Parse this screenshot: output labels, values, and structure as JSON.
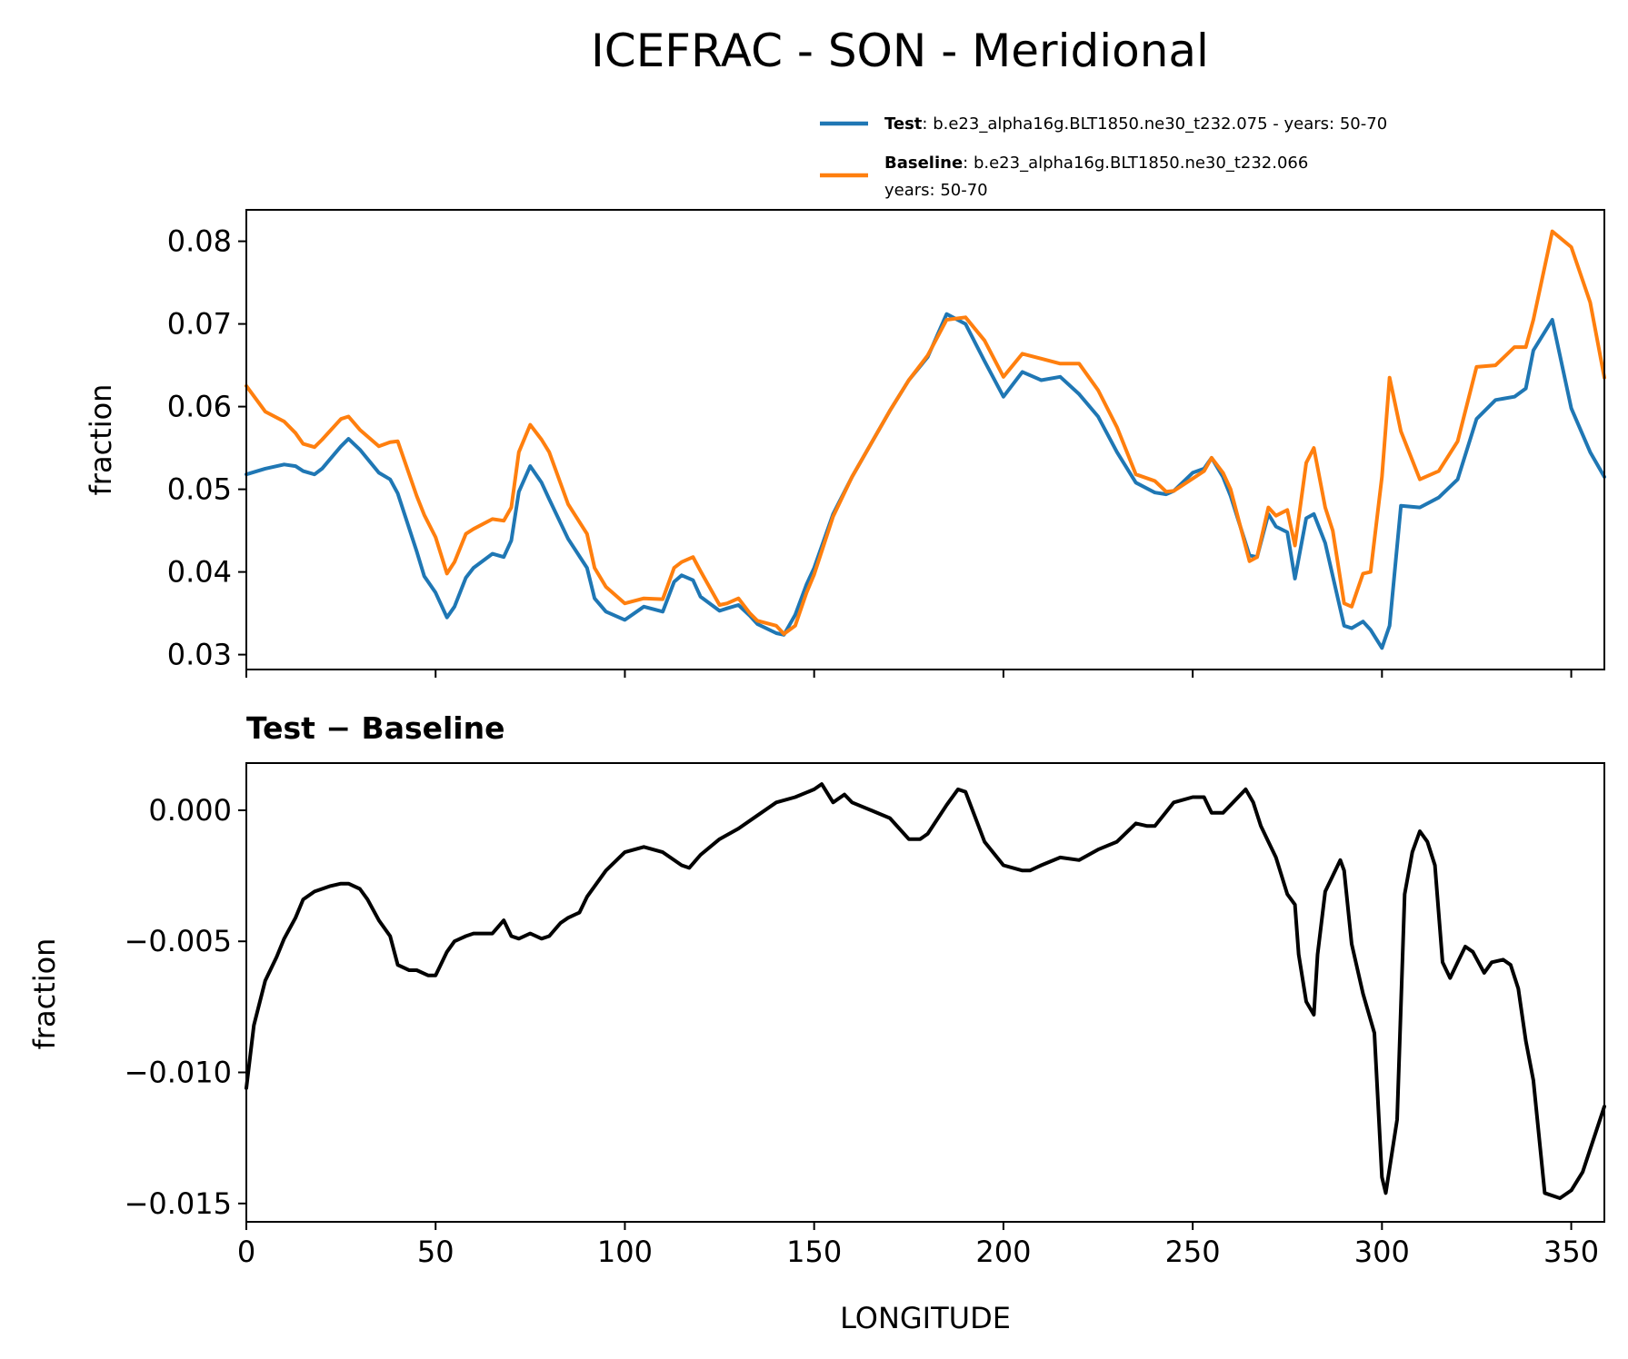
{
  "chart_data": [
    {
      "type": "line",
      "title": "ICEFRAC - SON - Meridional",
      "xlabel": "",
      "ylabel": "fraction",
      "xlim": [
        0,
        358.75
      ],
      "ylim": [
        0.0282,
        0.0838
      ],
      "yticks": [
        0.03,
        0.04,
        0.05,
        0.06,
        0.07,
        0.08
      ],
      "ytick_labels": [
        "0.03",
        "0.04",
        "0.05",
        "0.06",
        "0.07",
        "0.08"
      ],
      "legend": {
        "placement": "above-right",
        "entries": [
          {
            "bold": "Test",
            "text": ": b.e23_alpha16g.BLT1850.ne30_t232.075 - years: 50-70",
            "text2": ""
          },
          {
            "bold": "Baseline",
            "text": ": b.e23_alpha16g.BLT1850.ne30_t232.066",
            "text2": "years: 50-70"
          }
        ]
      },
      "series": [
        {
          "name": "Test",
          "color": "#1f77b4",
          "x": [
            0,
            5,
            10,
            13,
            15,
            18,
            20,
            25,
            27,
            30,
            35,
            38,
            40,
            45,
            47,
            50,
            53,
            55,
            58,
            60,
            65,
            68,
            70,
            72,
            75,
            78,
            80,
            85,
            90,
            92,
            95,
            100,
            105,
            110,
            113,
            115,
            118,
            120,
            125,
            127,
            130,
            133,
            135,
            140,
            142,
            145,
            148,
            150,
            155,
            160,
            165,
            170,
            175,
            180,
            185,
            190,
            195,
            200,
            205,
            210,
            215,
            220,
            225,
            230,
            235,
            240,
            243,
            245,
            250,
            253,
            255,
            258,
            260,
            265,
            267,
            270,
            272,
            275,
            277,
            280,
            282,
            285,
            287,
            290,
            292,
            295,
            297,
            300,
            302,
            305,
            310,
            315,
            320,
            325,
            330,
            335,
            338,
            340,
            345,
            350,
            355,
            358.75
          ],
          "values": [
            0.0518,
            0.0525,
            0.053,
            0.0528,
            0.0522,
            0.0518,
            0.0525,
            0.0552,
            0.0561,
            0.0548,
            0.052,
            0.0512,
            0.0495,
            0.0425,
            0.0395,
            0.0375,
            0.0345,
            0.0358,
            0.0393,
            0.0405,
            0.0422,
            0.0418,
            0.0438,
            0.0497,
            0.0528,
            0.0508,
            0.0488,
            0.044,
            0.0405,
            0.0368,
            0.0352,
            0.0342,
            0.0358,
            0.0352,
            0.0388,
            0.0396,
            0.039,
            0.037,
            0.0353,
            0.0356,
            0.036,
            0.0347,
            0.0337,
            0.0326,
            0.0324,
            0.0348,
            0.0385,
            0.0405,
            0.047,
            0.0515,
            0.0555,
            0.0595,
            0.0632,
            0.066,
            0.0712,
            0.07,
            0.0655,
            0.0612,
            0.0642,
            0.0632,
            0.0636,
            0.0615,
            0.0588,
            0.0545,
            0.0508,
            0.0496,
            0.0494,
            0.0498,
            0.052,
            0.0525,
            0.0538,
            0.0515,
            0.0492,
            0.042,
            0.0418,
            0.047,
            0.0455,
            0.0448,
            0.0392,
            0.0465,
            0.047,
            0.0435,
            0.0395,
            0.0335,
            0.0332,
            0.034,
            0.033,
            0.0308,
            0.0335,
            0.048,
            0.0478,
            0.049,
            0.0512,
            0.0585,
            0.0608,
            0.0612,
            0.0622,
            0.0668,
            0.0705,
            0.0598,
            0.0545,
            0.0515
          ]
        },
        {
          "name": "Baseline",
          "color": "#ff7f0e",
          "x": [
            0,
            5,
            10,
            13,
            15,
            18,
            20,
            25,
            27,
            30,
            35,
            38,
            40,
            45,
            47,
            50,
            53,
            55,
            58,
            60,
            65,
            68,
            70,
            72,
            75,
            78,
            80,
            85,
            90,
            92,
            95,
            100,
            105,
            110,
            113,
            115,
            118,
            120,
            125,
            127,
            130,
            133,
            135,
            140,
            142,
            145,
            148,
            150,
            155,
            160,
            165,
            170,
            175,
            180,
            185,
            190,
            195,
            200,
            205,
            210,
            215,
            220,
            225,
            230,
            235,
            240,
            243,
            245,
            250,
            253,
            255,
            258,
            260,
            265,
            267,
            270,
            272,
            275,
            277,
            280,
            282,
            285,
            287,
            290,
            292,
            295,
            297,
            300,
            302,
            305,
            310,
            315,
            320,
            325,
            330,
            335,
            338,
            340,
            345,
            350,
            355,
            358.75
          ],
          "values": [
            0.0625,
            0.0594,
            0.0582,
            0.0568,
            0.0555,
            0.0551,
            0.056,
            0.0585,
            0.0588,
            0.0572,
            0.0552,
            0.0557,
            0.0558,
            0.0492,
            0.0469,
            0.0442,
            0.0398,
            0.0412,
            0.0446,
            0.0452,
            0.0464,
            0.0462,
            0.0478,
            0.0545,
            0.0578,
            0.056,
            0.0545,
            0.0482,
            0.0446,
            0.0405,
            0.0382,
            0.0362,
            0.0368,
            0.0367,
            0.0405,
            0.0412,
            0.0418,
            0.0401,
            0.036,
            0.0362,
            0.0368,
            0.035,
            0.0341,
            0.0335,
            0.0325,
            0.0335,
            0.0375,
            0.0397,
            0.0467,
            0.0515,
            0.0555,
            0.0595,
            0.0632,
            0.0662,
            0.0705,
            0.0708,
            0.068,
            0.0636,
            0.0664,
            0.0658,
            0.0652,
            0.0652,
            0.062,
            0.0575,
            0.0518,
            0.051,
            0.0497,
            0.0498,
            0.0513,
            0.0522,
            0.0538,
            0.052,
            0.05,
            0.0413,
            0.0418,
            0.0478,
            0.0468,
            0.0475,
            0.0432,
            0.0532,
            0.055,
            0.0478,
            0.045,
            0.0362,
            0.0358,
            0.0398,
            0.04,
            0.0515,
            0.0635,
            0.057,
            0.0512,
            0.0522,
            0.0558,
            0.0648,
            0.065,
            0.0672,
            0.0672,
            0.0705,
            0.0812,
            0.0793,
            0.0726,
            0.0635
          ]
        }
      ]
    },
    {
      "type": "line",
      "title": "Test − Baseline",
      "xlabel": "LONGITUDE",
      "ylabel": "fraction",
      "xlim": [
        0,
        358.75
      ],
      "ylim": [
        -0.0157,
        0.0018
      ],
      "xticks": [
        0,
        50,
        100,
        150,
        200,
        250,
        300,
        350
      ],
      "xtick_labels": [
        "0",
        "50",
        "100",
        "150",
        "200",
        "250",
        "300",
        "350"
      ],
      "yticks": [
        0.0,
        -0.005,
        -0.01,
        -0.015
      ],
      "ytick_labels": [
        "0.000",
        "−0.005",
        "−0.010",
        "−0.015"
      ],
      "series": [
        {
          "name": "Test − Baseline",
          "color": "#000000",
          "x": [
            0,
            2,
            5,
            8,
            10,
            13,
            15,
            18,
            20,
            22,
            25,
            27,
            30,
            32,
            35,
            38,
            40,
            43,
            45,
            48,
            50,
            53,
            55,
            58,
            60,
            65,
            68,
            70,
            72,
            75,
            78,
            80,
            83,
            85,
            88,
            90,
            95,
            100,
            105,
            110,
            115,
            117,
            120,
            125,
            130,
            135,
            140,
            145,
            150,
            152,
            155,
            158,
            160,
            165,
            170,
            175,
            178,
            180,
            185,
            188,
            190,
            195,
            200,
            205,
            207,
            210,
            215,
            220,
            225,
            230,
            235,
            238,
            240,
            245,
            250,
            253,
            255,
            258,
            260,
            264,
            266,
            268,
            270,
            272,
            275,
            277,
            278,
            280,
            282,
            283,
            285,
            287,
            289,
            290,
            292,
            295,
            298,
            300,
            301,
            304,
            306,
            308,
            310,
            312,
            314,
            316,
            318,
            320,
            322,
            324,
            327,
            329,
            332,
            334,
            336,
            338,
            340,
            343,
            347,
            350,
            353,
            356,
            358.75
          ],
          "values": [
            -0.0106,
            -0.0082,
            -0.0065,
            -0.0056,
            -0.0049,
            -0.0041,
            -0.0034,
            -0.0031,
            -0.003,
            -0.0029,
            -0.0028,
            -0.0028,
            -0.003,
            -0.0034,
            -0.0042,
            -0.0048,
            -0.0059,
            -0.0061,
            -0.0061,
            -0.0063,
            -0.0063,
            -0.0054,
            -0.005,
            -0.0048,
            -0.0047,
            -0.0047,
            -0.0042,
            -0.0048,
            -0.0049,
            -0.0047,
            -0.0049,
            -0.0048,
            -0.0043,
            -0.0041,
            -0.0039,
            -0.0033,
            -0.0023,
            -0.0016,
            -0.0014,
            -0.0016,
            -0.0021,
            -0.0022,
            -0.0017,
            -0.0011,
            -0.0007,
            -0.0002,
            0.0003,
            0.0005,
            0.0008,
            0.001,
            0.0003,
            0.0006,
            0.0003,
            0.0,
            -0.0003,
            -0.0011,
            -0.0011,
            -0.0009,
            0.0002,
            0.0008,
            0.0007,
            -0.0012,
            -0.0021,
            -0.0023,
            -0.0023,
            -0.0021,
            -0.0018,
            -0.0019,
            -0.0015,
            -0.0012,
            -0.0005,
            -0.0006,
            -0.0006,
            0.0003,
            0.0005,
            0.0005,
            -0.0001,
            -0.0001,
            0.0002,
            0.0008,
            0.0003,
            -0.0006,
            -0.0012,
            -0.0018,
            -0.0032,
            -0.0036,
            -0.0055,
            -0.0073,
            -0.0078,
            -0.0055,
            -0.0031,
            -0.0025,
            -0.0019,
            -0.0023,
            -0.0051,
            -0.007,
            -0.0085,
            -0.014,
            -0.0146,
            -0.0118,
            -0.0032,
            -0.0016,
            -0.0008,
            -0.0012,
            -0.0021,
            -0.0058,
            -0.0064,
            -0.0058,
            -0.0052,
            -0.0054,
            -0.0062,
            -0.0058,
            -0.0057,
            -0.0059,
            -0.0068,
            -0.0088,
            -0.0103,
            -0.0146,
            -0.0148,
            -0.0145,
            -0.0138,
            -0.0125,
            -0.0113
          ]
        }
      ]
    }
  ]
}
